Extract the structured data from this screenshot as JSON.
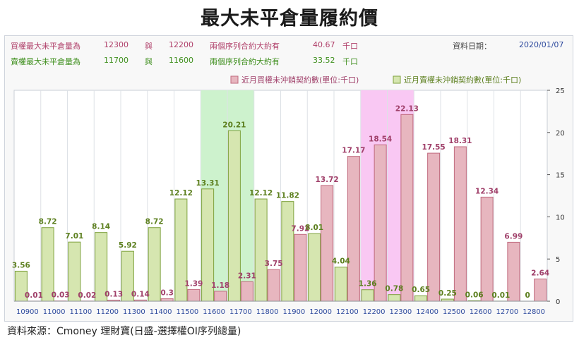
{
  "title": "最大未平倉量履約價",
  "info": {
    "call": {
      "label": "買權最大未平倉量為",
      "strike1": "12300",
      "connector": "與",
      "strike2": "12200",
      "desc": "兩個序列合約大約有",
      "value": "40.67",
      "unit": "千口"
    },
    "put": {
      "label": "賣權最大未平倉量為",
      "strike1": "11700",
      "connector": "與",
      "strike2": "11600",
      "desc": "兩個序列合約大約有",
      "value": "33.52",
      "unit": "千口"
    },
    "date_label": "資料日期：",
    "date": "2020/01/07"
  },
  "source": "資料來源：Cmoney 理財寶(日盛-選擇權OI序列總量)",
  "colors": {
    "call_fill": "#e7b6bf",
    "call_stroke": "#c06a7e",
    "put_fill": "#d6e6b0",
    "put_stroke": "#7ea13c",
    "call_label": "#a0406a",
    "put_label": "#5c7f1e",
    "call_highlight": "#f9c8f3",
    "put_highlight": "#cdf2cd"
  },
  "chart_data": {
    "type": "bar",
    "categories": [
      "10900",
      "11000",
      "11100",
      "11200",
      "11300",
      "11400",
      "11500",
      "11600",
      "11700",
      "11800",
      "11900",
      "12000",
      "12100",
      "12200",
      "12300",
      "12400",
      "12500",
      "12600",
      "12700",
      "12800"
    ],
    "series": [
      {
        "name": "近月賣權未沖銷契約數(單位:千口)",
        "values": [
          3.56,
          8.72,
          7.01,
          8.14,
          5.92,
          8.72,
          12.12,
          13.31,
          20.21,
          12.12,
          11.82,
          8.01,
          4.04,
          1.36,
          0.78,
          0.65,
          0.25,
          0.06,
          0.01,
          0
        ]
      },
      {
        "name": "近月買權未沖銷契約數(單位:千口)",
        "values": [
          0.01,
          0.03,
          0.02,
          0.13,
          0.14,
          0.3,
          1.39,
          1.18,
          2.31,
          3.75,
          7.92,
          13.72,
          17.17,
          18.54,
          22.13,
          17.55,
          18.31,
          12.34,
          6.99,
          2.64
        ]
      }
    ],
    "highlight": {
      "put": [
        "11600",
        "11700"
      ],
      "call": [
        "12200",
        "12300"
      ]
    },
    "yticks": [
      0,
      5,
      10,
      15,
      20,
      25
    ],
    "ylim": [
      0,
      25
    ],
    "xlabel": "",
    "ylabel": "",
    "legend_position": "top"
  }
}
